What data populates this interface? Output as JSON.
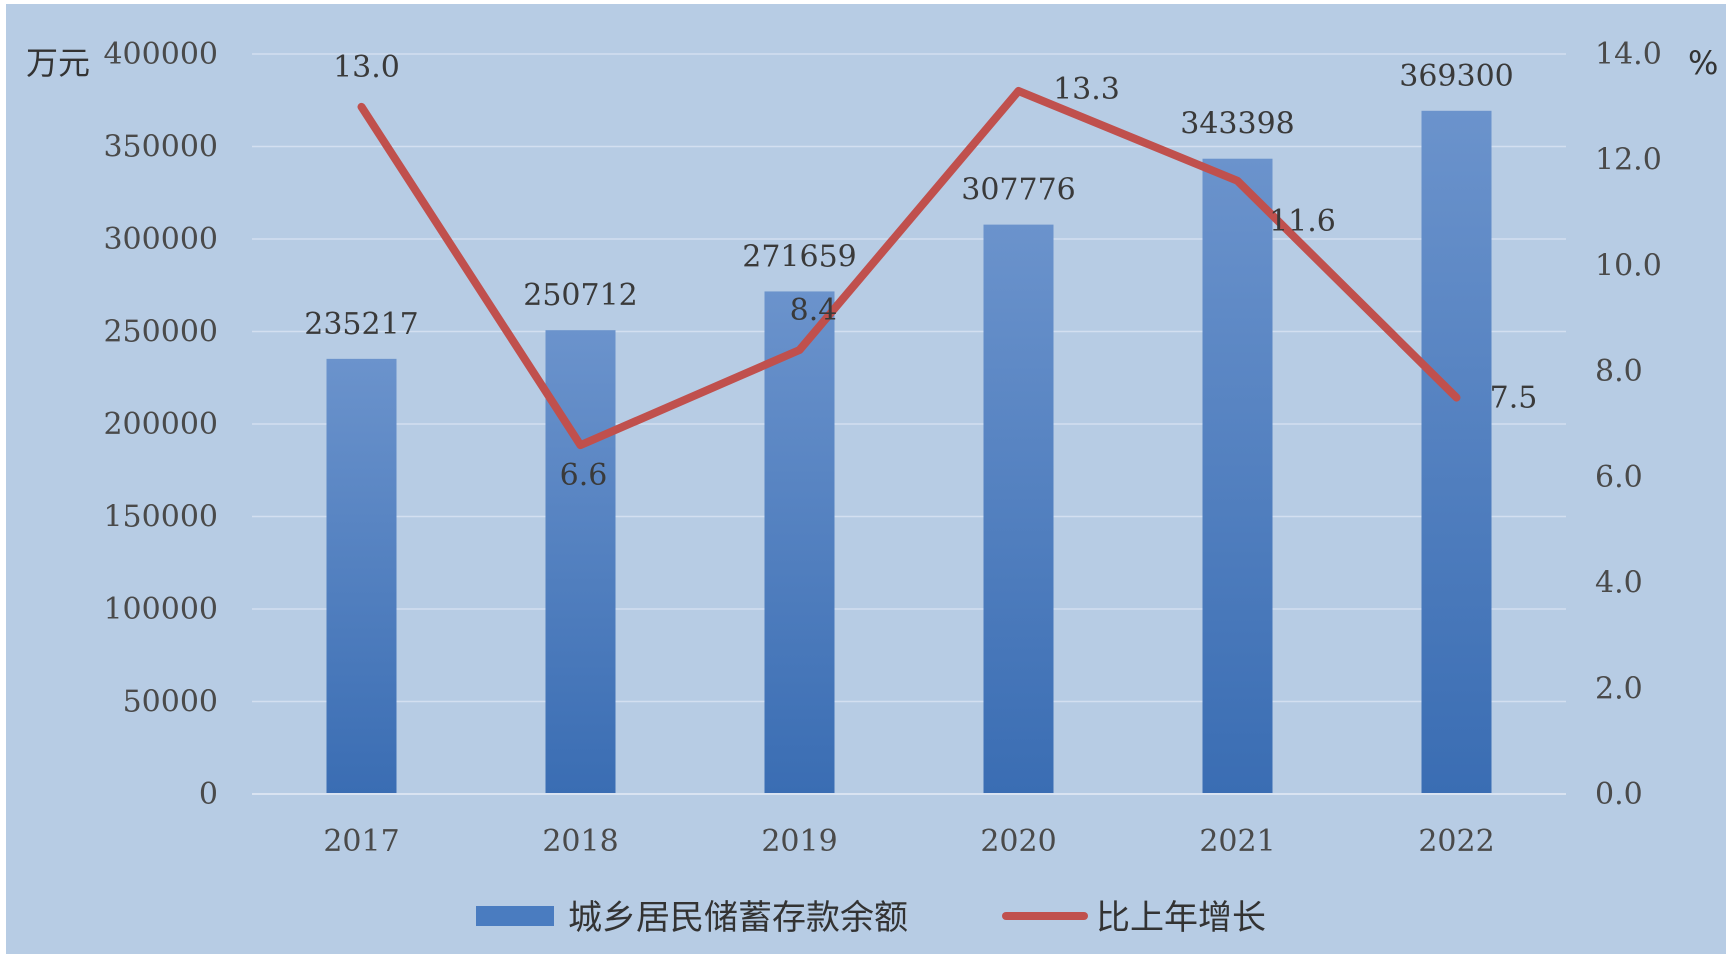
{
  "chart_data": {
    "type": "bar",
    "categories": [
      "2017",
      "2018",
      "2019",
      "2020",
      "2021",
      "2022"
    ],
    "series": [
      {
        "name": "城乡居民储蓄存款余额",
        "type": "bar",
        "axis": "left",
        "values": [
          235217,
          250712,
          271659,
          307776,
          343398,
          369300
        ],
        "labels": [
          "235217",
          "250712",
          "271659",
          "307776",
          "343398",
          "369300"
        ],
        "color": "#4a7cc0"
      },
      {
        "name": "比上年增长",
        "type": "line",
        "axis": "right",
        "values": [
          13.0,
          6.6,
          8.4,
          13.3,
          11.6,
          7.5
        ],
        "labels": [
          "13.0",
          "6.6",
          "8.4",
          "13.3",
          "11.6",
          "7.5"
        ],
        "color": "#c0504d"
      }
    ],
    "y_left": {
      "unit": "万元",
      "ylim": [
        0,
        400000
      ],
      "ticks": [
        "0",
        "50000",
        "100000",
        "150000",
        "200000",
        "250000",
        "300000",
        "350000",
        "400000"
      ]
    },
    "y_right": {
      "unit": "%",
      "ylim": [
        0,
        14
      ],
      "ticks": [
        "0.0",
        "2.0",
        "4.0",
        "6.0",
        "8.0",
        "10.0",
        "12.0",
        "14.0"
      ]
    },
    "grid": true,
    "legend": "bottom",
    "background": "#b7cce4",
    "gridline_color": "#d3dff0"
  }
}
